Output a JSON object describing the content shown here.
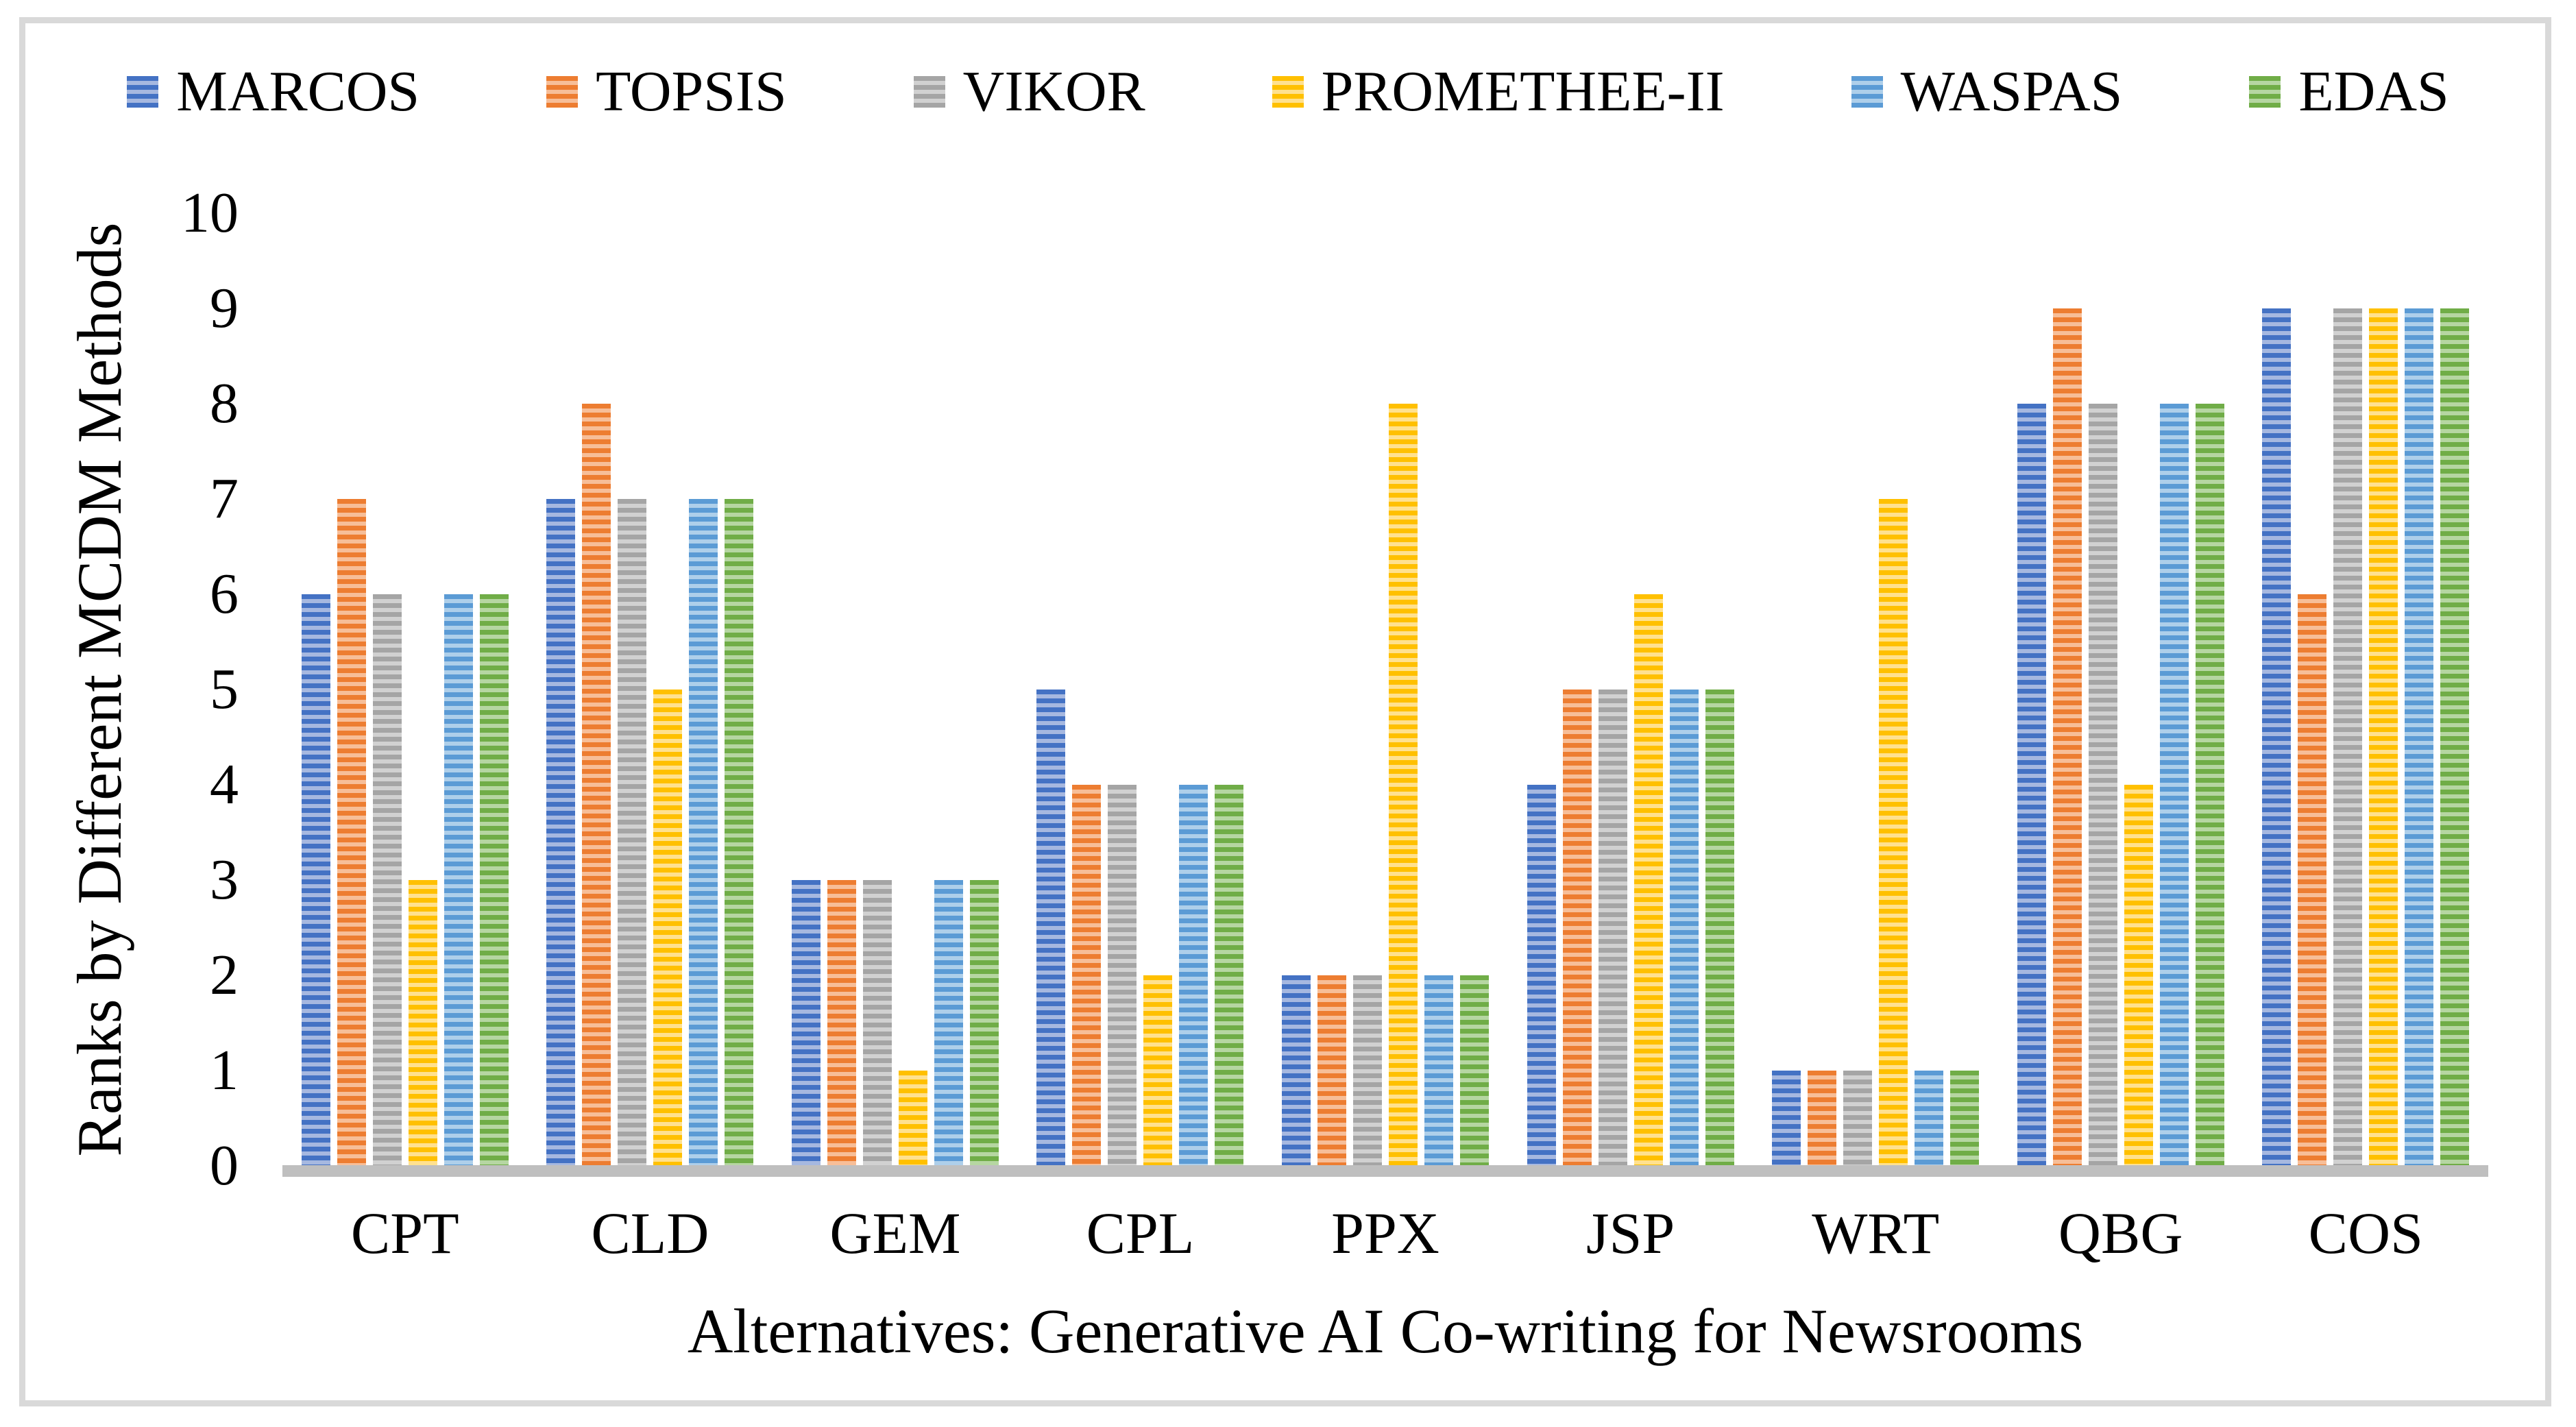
{
  "chart_data": {
    "type": "bar",
    "title": "",
    "xlabel": "Alternatives: Generative AI Co-writing for Newsrooms",
    "ylabel": "Ranks by Different MCDM Methods",
    "categories": [
      "CPT",
      "CLD",
      "GEM",
      "CPL",
      "PPX",
      "JSP",
      "WRT",
      "QBG",
      "COS"
    ],
    "series": [
      {
        "name": "MARCOS",
        "color": "#4472C4",
        "color_light": "#A6B8E0",
        "values": [
          6,
          7,
          3,
          5,
          2,
          4,
          1,
          8,
          9
        ]
      },
      {
        "name": "TOPSIS",
        "color": "#ED7D31",
        "color_light": "#F7BE98",
        "values": [
          7,
          8,
          3,
          4,
          2,
          5,
          1,
          9,
          6
        ]
      },
      {
        "name": "VIKOR",
        "color": "#A5A5A5",
        "color_light": "#D1D1D1",
        "values": [
          6,
          7,
          3,
          4,
          2,
          5,
          1,
          8,
          9
        ]
      },
      {
        "name": "PROMETHEE-II",
        "color": "#FFC000",
        "color_light": "#FFE18F",
        "values": [
          3,
          5,
          1,
          2,
          8,
          6,
          7,
          4,
          9
        ]
      },
      {
        "name": "WASPAS",
        "color": "#5B9BD5",
        "color_light": "#AECFEA",
        "values": [
          6,
          7,
          3,
          4,
          2,
          5,
          1,
          8,
          9
        ]
      },
      {
        "name": "EDAS",
        "color": "#70AD47",
        "color_light": "#B6D6A2",
        "values": [
          6,
          7,
          3,
          4,
          2,
          5,
          1,
          8,
          9
        ]
      }
    ],
    "ylim": [
      0,
      10
    ],
    "yticks": [
      "0",
      "1",
      "2",
      "3",
      "4",
      "5",
      "6",
      "7",
      "8",
      "9",
      "10"
    ],
    "legend_position": "top",
    "grid": false,
    "axis_line_color": "#BFBFBF",
    "frame_color": "#D9D9D9"
  }
}
